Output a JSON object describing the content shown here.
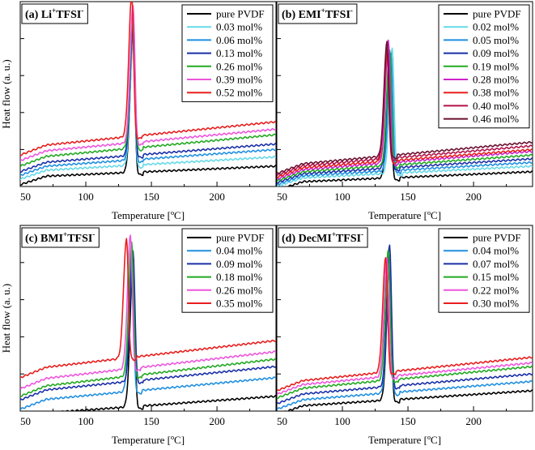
{
  "chart_data": [
    {
      "panel_label": "(a) Li",
      "panel_sup": "+",
      "panel_anion": "TFSI",
      "panel_anion_sup": "-",
      "type": "line",
      "xlabel": "Temperature [ºC]",
      "ylabel": "Heat flow (a. u.)",
      "xlim": [
        50,
        245
      ],
      "x_ticks": [
        50,
        100,
        150,
        200
      ],
      "ylim": [
        0,
        1
      ],
      "legend_position": "top-right",
      "peak_x": 135,
      "series": [
        {
          "name": "pure PVDF",
          "color": "#000000",
          "offset": 0.05,
          "slope": 0.06,
          "peak": 0.72,
          "peak_x": 136
        },
        {
          "name": "0.03 mol%",
          "color": "#66d9e8",
          "offset": 0.08,
          "slope": 0.08,
          "peak": 0.66,
          "peak_x": 136
        },
        {
          "name": "0.06 mol%",
          "color": "#1f8fe0",
          "offset": 0.1,
          "slope": 0.1,
          "peak": 0.68,
          "peak_x": 136
        },
        {
          "name": "0.13 mol%",
          "color": "#1a2fa8",
          "offset": 0.12,
          "slope": 0.11,
          "peak": 0.7,
          "peak_x": 136
        },
        {
          "name": "0.26 mol%",
          "color": "#22aa22",
          "offset": 0.15,
          "slope": 0.13,
          "peak": 0.72,
          "peak_x": 136
        },
        {
          "name": "0.39 mol%",
          "color": "#ee55dd",
          "offset": 0.18,
          "slope": 0.13,
          "peak": 0.74,
          "peak_x": 136
        },
        {
          "name": "0.52 mol%",
          "color": "#e81e1e",
          "offset": 0.21,
          "slope": 0.14,
          "peak": 0.76,
          "peak_x": 135
        }
      ]
    },
    {
      "panel_label": "(b) EMI",
      "panel_sup": "+",
      "panel_anion": "TFSI",
      "panel_anion_sup": "-",
      "type": "line",
      "xlabel": "Temperature [ºC]",
      "ylabel": "",
      "xlim": [
        50,
        245
      ],
      "x_ticks": [
        50,
        100,
        150,
        200
      ],
      "ylim": [
        0,
        1
      ],
      "legend_position": "top-right",
      "series": [
        {
          "name": "pure PVDF",
          "color": "#000000",
          "offset": 0.02,
          "slope": 0.06,
          "peak": 0.62,
          "peak_x": 136
        },
        {
          "name": "0.02 mol%",
          "color": "#66d9e8",
          "offset": 0.04,
          "slope": 0.07,
          "peak": 0.68,
          "peak_x": 138
        },
        {
          "name": "0.05 mol%",
          "color": "#1f8fe0",
          "offset": 0.05,
          "slope": 0.08,
          "peak": 0.64,
          "peak_x": 137
        },
        {
          "name": "0.09 mol%",
          "color": "#1a2fa8",
          "offset": 0.06,
          "slope": 0.09,
          "peak": 0.6,
          "peak_x": 136
        },
        {
          "name": "0.19 mol%",
          "color": "#22aa22",
          "offset": 0.07,
          "slope": 0.1,
          "peak": 0.62,
          "peak_x": 136
        },
        {
          "name": "0.28 mol%",
          "color": "#cc22cc",
          "offset": 0.08,
          "slope": 0.11,
          "peak": 0.66,
          "peak_x": 135
        },
        {
          "name": "0.38 mol%",
          "color": "#e81e1e",
          "offset": 0.09,
          "slope": 0.11,
          "peak": 0.58,
          "peak_x": 134
        },
        {
          "name": "0.40 mol%",
          "color": "#b3124a",
          "offset": 0.1,
          "slope": 0.12,
          "peak": 0.6,
          "peak_x": 134
        },
        {
          "name": "0.46 mol%",
          "color": "#6b1030",
          "offset": 0.11,
          "slope": 0.13,
          "peak": 0.62,
          "peak_x": 134
        }
      ]
    },
    {
      "panel_label": "(c) BMI",
      "panel_sup": "+",
      "panel_anion": "TFSI",
      "panel_anion_sup": "-",
      "type": "line",
      "xlabel": "Temperature [ºC]",
      "ylabel": "Heat flow (a. u.)",
      "xlim": [
        50,
        245
      ],
      "x_ticks": [
        50,
        100,
        150,
        200
      ],
      "ylim": [
        0,
        1
      ],
      "legend_position": "top-right",
      "series": [
        {
          "name": "pure PVDF",
          "color": "#000000",
          "offset": -0.02,
          "slope": 0.1,
          "peak": 0.76,
          "peak_x": 136
        },
        {
          "name": "0.04 mol%",
          "color": "#1f8fe0",
          "offset": 0.05,
          "slope": 0.13,
          "peak": 0.74,
          "peak_x": 135
        },
        {
          "name": "0.09 mol%",
          "color": "#1a2fa8",
          "offset": 0.1,
          "slope": 0.14,
          "peak": 0.7,
          "peak_x": 136
        },
        {
          "name": "0.18 mol%",
          "color": "#22aa22",
          "offset": 0.12,
          "slope": 0.16,
          "peak": 0.72,
          "peak_x": 135
        },
        {
          "name": "0.26 mol%",
          "color": "#ee55dd",
          "offset": 0.16,
          "slope": 0.16,
          "peak": 0.72,
          "peak_x": 134
        },
        {
          "name": "0.35 mol%",
          "color": "#e81e1e",
          "offset": 0.22,
          "slope": 0.16,
          "peak": 0.64,
          "peak_x": 131
        }
      ]
    },
    {
      "panel_label": "(d) DecMI",
      "panel_sup": "+",
      "panel_anion": "TFSI",
      "panel_anion_sup": "-",
      "type": "line",
      "xlabel": "Temperature [ºC]",
      "ylabel": "",
      "xlim": [
        50,
        245
      ],
      "x_ticks": [
        50,
        100,
        150,
        200
      ],
      "ylim": [
        0,
        1
      ],
      "legend_position": "top-right",
      "series": [
        {
          "name": "pure PVDF",
          "color": "#000000",
          "offset": 0.02,
          "slope": 0.09,
          "peak": 0.72,
          "peak_x": 136
        },
        {
          "name": "0.04 mol%",
          "color": "#1f8fe0",
          "offset": 0.05,
          "slope": 0.11,
          "peak": 0.74,
          "peak_x": 136
        },
        {
          "name": "0.07 mol%",
          "color": "#1a2fa8",
          "offset": 0.08,
          "slope": 0.12,
          "peak": 0.76,
          "peak_x": 136
        },
        {
          "name": "0.15 mol%",
          "color": "#22aa22",
          "offset": 0.11,
          "slope": 0.13,
          "peak": 0.7,
          "peak_x": 135
        },
        {
          "name": "0.22 mol%",
          "color": "#ee55dd",
          "offset": 0.13,
          "slope": 0.13,
          "peak": 0.64,
          "peak_x": 134
        },
        {
          "name": "0.30 mol%",
          "color": "#e81e1e",
          "offset": 0.15,
          "slope": 0.14,
          "peak": 0.62,
          "peak_x": 133
        }
      ]
    }
  ]
}
